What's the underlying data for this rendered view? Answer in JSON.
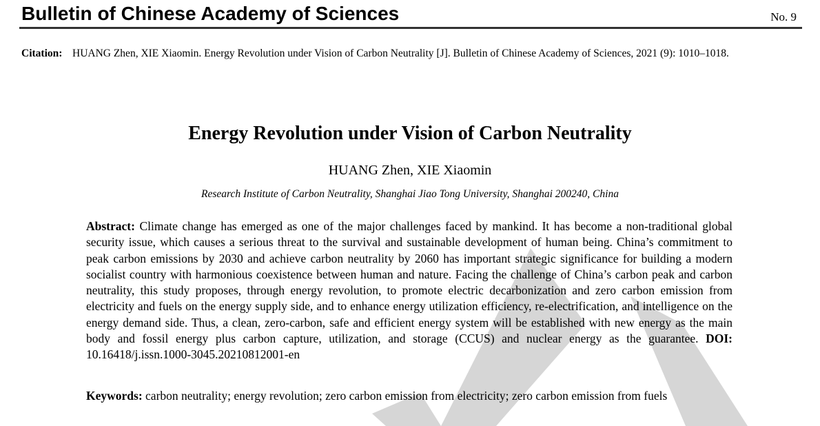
{
  "header": {
    "journal_title": "Bulletin of Chinese Academy of Sciences",
    "issue": "No. 9"
  },
  "citation": {
    "label": "Citation:",
    "text": "HUANG Zhen, XIE Xiaomin. Energy Revolution under Vision of Carbon Neutrality [J]. Bulletin of Chinese Academy of Sciences, 2021 (9): 1010–1018."
  },
  "article": {
    "title": "Energy Revolution under Vision of Carbon Neutrality",
    "authors": "HUANG Zhen, XIE Xiaomin",
    "affiliation": "Research Institute of Carbon Neutrality, Shanghai Jiao Tong University, Shanghai 200240, China"
  },
  "abstract": {
    "label": "Abstract:",
    "text": "Climate change has emerged as one of the major challenges faced by mankind. It has become a non-traditional global security issue, which causes a serious threat to the survival and sustainable development of human being. China’s commitment to peak carbon emissions by 2030 and achieve carbon neutrality by 2060 has important strategic significance for building a modern socialist country with harmonious coexistence between hu­man and nature. Facing the challenge of China’s carbon peak and carbon neutrality, this study proposes, through energy revolution, to promote electric decarbonization and zero carbon emission from electricity and fuels on the energy supply side, and to enhance energy utilization efficiency, re-electrification, and intelligence on the energy demand side. Thus, a clean, zero-carbon, safe and efficient energy system will be established with new energy as the main body and fossil energy plus carbon capture, utilization, and storage (CCUS) and nuclear energy as the guarantee.",
    "doi_label": "DOI:",
    "doi": "10.16418/j.issn.1000-3045.20210812001-en"
  },
  "keywords": {
    "label": "Keywords:",
    "text": "carbon neutrality; energy revolution; zero carbon emission from electricity; zero carbon emission from fuels"
  },
  "colors": {
    "watermark": "#d6d6d6",
    "rule": "#333333"
  }
}
